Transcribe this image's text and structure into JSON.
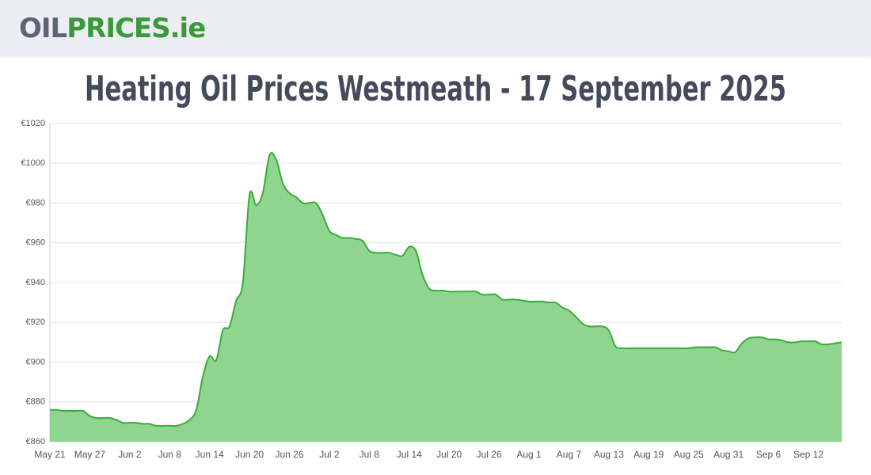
{
  "header": {
    "logo_part1": "OIL",
    "logo_part2": "PRICES.ie"
  },
  "chart_data": {
    "type": "area",
    "title": "Heating Oil Prices Westmeath - 17 September 2025",
    "categories": [
      "May 21",
      null,
      null,
      null,
      null,
      null,
      "May 27",
      null,
      null,
      null,
      null,
      null,
      "Jun 2",
      null,
      null,
      null,
      null,
      null,
      "Jun 8",
      null,
      null,
      null,
      null,
      null,
      "Jun 14",
      null,
      null,
      null,
      null,
      null,
      "Jun 20",
      null,
      null,
      null,
      null,
      null,
      "Jun 26",
      null,
      null,
      null,
      null,
      null,
      "Jul 2",
      null,
      null,
      null,
      null,
      null,
      "Jul 8",
      null,
      null,
      null,
      null,
      null,
      "Jul 14",
      null,
      null,
      null,
      null,
      null,
      "Jul 20",
      null,
      null,
      null,
      null,
      null,
      "Jul 26",
      null,
      null,
      null,
      null,
      null,
      "Aug 1",
      null,
      null,
      null,
      null,
      null,
      "Aug 7",
      null,
      null,
      null,
      null,
      null,
      "Aug 13",
      null,
      null,
      null,
      null,
      null,
      "Aug 19",
      null,
      null,
      null,
      null,
      null,
      "Aug 25",
      null,
      null,
      null,
      null,
      null,
      "Aug 31",
      null,
      null,
      null,
      null,
      null,
      "Sep 6",
      null,
      null,
      null,
      null,
      null,
      "Sep 12",
      null,
      null,
      null,
      null,
      null
    ],
    "values": [
      876,
      876,
      875.5,
      875.5,
      875.5,
      875.5,
      873,
      872,
      872,
      872,
      871,
      869.5,
      869.5,
      869.5,
      869,
      869,
      868,
      868,
      868,
      868,
      869,
      871,
      876,
      893,
      903,
      901,
      916,
      918,
      931,
      940,
      984,
      979,
      985,
      1004,
      1002,
      990,
      985,
      983,
      980,
      980,
      980,
      974,
      966,
      964,
      962.5,
      962.5,
      962,
      961,
      956,
      955,
      955,
      955,
      954,
      953.5,
      958,
      956,
      944,
      937,
      936,
      936,
      935.5,
      935.5,
      935.5,
      935.5,
      935.5,
      934,
      934,
      934,
      931.5,
      931.5,
      931.5,
      931,
      930.5,
      930.5,
      930.5,
      930,
      930,
      927.5,
      926,
      923,
      919.5,
      918,
      918,
      918,
      916,
      908,
      907,
      907,
      907,
      907,
      907,
      907,
      907,
      907,
      907,
      907,
      907,
      907.5,
      907.5,
      907.5,
      907.5,
      906,
      905.5,
      905,
      909.5,
      912,
      912.5,
      912.5,
      911.5,
      911.5,
      911,
      910,
      910,
      910.5,
      910.5,
      910.5,
      909,
      909,
      909.5,
      910
    ],
    "color": "#3aab3a",
    "fill": "#90d58f",
    "ylim": [
      860,
      1020
    ],
    "yticks": [
      {
        "value": 860,
        "label": "€860"
      },
      {
        "value": 880,
        "label": "€880"
      },
      {
        "value": 900,
        "label": "€900"
      },
      {
        "value": 920,
        "label": "€920"
      },
      {
        "value": 940,
        "label": "€940"
      },
      {
        "value": 960,
        "label": "€960"
      },
      {
        "value": 980,
        "label": "€980"
      },
      {
        "value": 1000,
        "label": "€1000"
      },
      {
        "value": 1020,
        "label": "€1020"
      }
    ],
    "grid": true
  }
}
